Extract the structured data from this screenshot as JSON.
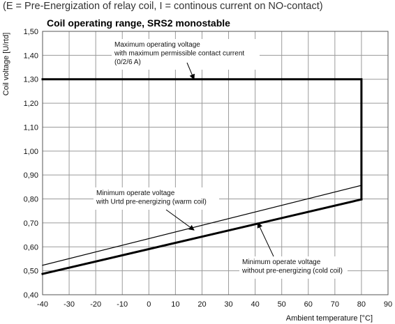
{
  "caption": "(E = Pre-Energization of relay coil, I = continous current on NO-contact)",
  "chart_data": {
    "type": "line",
    "title": "Coil operating range, SRS2 monostable",
    "xlabel": "Ambient temperature [°C]",
    "ylabel": "Coil voltage [U/rtd]",
    "xlim": [
      -40,
      90
    ],
    "ylim": [
      0.4,
      1.5
    ],
    "xticks": [
      -40,
      -30,
      -20,
      -10,
      0,
      10,
      20,
      30,
      40,
      50,
      60,
      70,
      80,
      90
    ],
    "yticks": [
      0.4,
      0.5,
      0.6,
      0.7,
      0.8,
      0.9,
      1.0,
      1.1,
      1.2,
      1.3,
      1.4,
      1.5
    ],
    "xtick_labels": [
      "-40",
      "-30",
      "-20",
      "-10",
      "0",
      "10",
      "20",
      "30",
      "40",
      "50",
      "60",
      "70",
      "80",
      "90"
    ],
    "ytick_labels": [
      "0,40",
      "0,50",
      "0,60",
      "0,70",
      "0,80",
      "0,90",
      "1,00",
      "1,10",
      "1,20",
      "1,30",
      "1,40",
      "1,50"
    ],
    "grid": true,
    "series": [
      {
        "x": [
          -40,
          80,
          80
        ],
        "y": [
          1.3,
          1.3,
          0.8
        ],
        "color": "#000000",
        "style": "thick"
      },
      {
        "x": [
          -40,
          80
        ],
        "y": [
          0.487,
          0.798
        ],
        "color": "#000000",
        "style": "thick"
      },
      {
        "x": [
          -40,
          80
        ],
        "y": [
          0.523,
          0.857
        ],
        "color": "#000000",
        "style": "thin"
      }
    ],
    "annotations": [
      {
        "lines": [
          "Maximum operating voltage",
          "with maximum permissible contact current",
          "(0/2/6 A)"
        ],
        "arrow_to": [
          17,
          1.3
        ]
      },
      {
        "lines": [
          "Minimum operate voltage",
          "with Urtd pre-energizing (warm coil)"
        ],
        "arrow_to": [
          17,
          0.67
        ]
      },
      {
        "lines": [
          "Minimum operate voltage",
          "without pre-energizing (cold coil)"
        ],
        "arrow_to": [
          41,
          0.7
        ]
      }
    ]
  }
}
